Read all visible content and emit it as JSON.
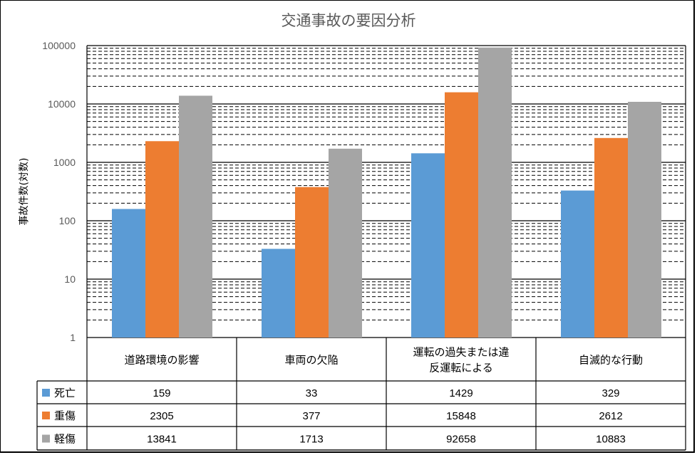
{
  "chart_data": {
    "type": "bar",
    "title": "交通事故の要因分析",
    "ylabel": "事故件数(対数)",
    "xlabel": "",
    "yscale": "log",
    "ylim": [
      1,
      100000
    ],
    "yticks": [
      "1",
      "10",
      "100",
      "1000",
      "10000",
      "100000"
    ],
    "grid": "major solid, minor dashed",
    "legend": "data-table",
    "categories": [
      "道路環境の影響",
      "車両の欠陥",
      "運転の過失または違反運転による",
      "自滅的な行動"
    ],
    "categories_lines": [
      [
        "道路環境の影響"
      ],
      [
        "車両の欠陥"
      ],
      [
        "運転の過失または違",
        "反運転による"
      ],
      [
        "自滅的な行動"
      ]
    ],
    "series": [
      {
        "name": "死亡",
        "color": "#5b9bd5",
        "values": [
          159,
          33,
          1429,
          329
        ]
      },
      {
        "name": "重傷",
        "color": "#ed7d31",
        "values": [
          2305,
          377,
          15848,
          2612
        ]
      },
      {
        "name": "軽傷",
        "color": "#a5a5a5",
        "values": [
          13841,
          1713,
          92658,
          10883
        ]
      }
    ]
  }
}
